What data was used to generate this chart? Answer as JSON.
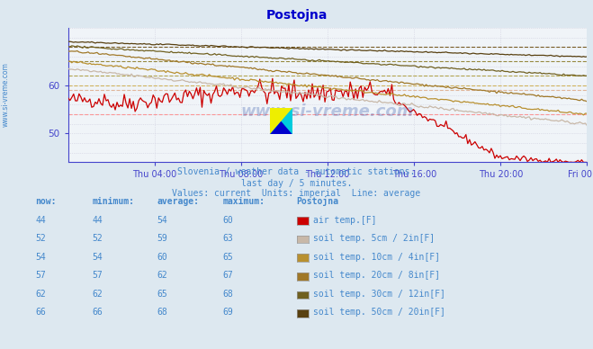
{
  "title": "Postojna",
  "subtitle1": "Slovenia / weather data - automatic stations.",
  "subtitle2": "last day / 5 minutes.",
  "subtitle3": "Values: current  Units: imperial  Line: average",
  "bg_color": "#dde8f0",
  "plot_bg_color": "#f0f4f8",
  "title_color": "#0000cc",
  "text_color": "#4488cc",
  "watermark": "www.si-vreme.com",
  "series": [
    {
      "label": "air temp.[F]",
      "color": "#cc0000",
      "now": 44,
      "minimum": 44,
      "average": 54,
      "maximum": 60
    },
    {
      "label": "soil temp. 5cm / 2in[F]",
      "color": "#c8b8a8",
      "now": 52,
      "minimum": 52,
      "average": 59,
      "maximum": 63
    },
    {
      "label": "soil temp. 10cm / 4in[F]",
      "color": "#b89030",
      "now": 54,
      "minimum": 54,
      "average": 60,
      "maximum": 65
    },
    {
      "label": "soil temp. 20cm / 8in[F]",
      "color": "#a07828",
      "now": 57,
      "minimum": 57,
      "average": 62,
      "maximum": 67
    },
    {
      "label": "soil temp. 30cm / 12in[F]",
      "color": "#706020",
      "now": 62,
      "minimum": 62,
      "average": 65,
      "maximum": 68
    },
    {
      "label": "soil temp. 50cm / 20in[F]",
      "color": "#584010",
      "now": 66,
      "minimum": 66,
      "average": 68,
      "maximum": 69
    }
  ],
  "legend_swatch_colors": [
    "#cc0000",
    "#c8b8a8",
    "#b89030",
    "#a07828",
    "#706020",
    "#584010"
  ],
  "ylim": [
    44,
    72
  ],
  "yticks": [
    50,
    60
  ],
  "n_points": 288,
  "xlabel_times": [
    "Thu 04:00",
    "Thu 08:00",
    "Thu 12:00",
    "Thu 16:00",
    "Thu 20:00",
    "Fri 00:00"
  ],
  "avg_line_colors": [
    "#ff8888",
    "#ddaa88",
    "#ccaa44",
    "#aa9933",
    "#887722",
    "#664400"
  ],
  "rows": [
    [
      44,
      44,
      54,
      60
    ],
    [
      52,
      52,
      59,
      63
    ],
    [
      54,
      54,
      60,
      65
    ],
    [
      57,
      57,
      62,
      67
    ],
    [
      62,
      62,
      65,
      68
    ],
    [
      66,
      66,
      68,
      69
    ]
  ]
}
